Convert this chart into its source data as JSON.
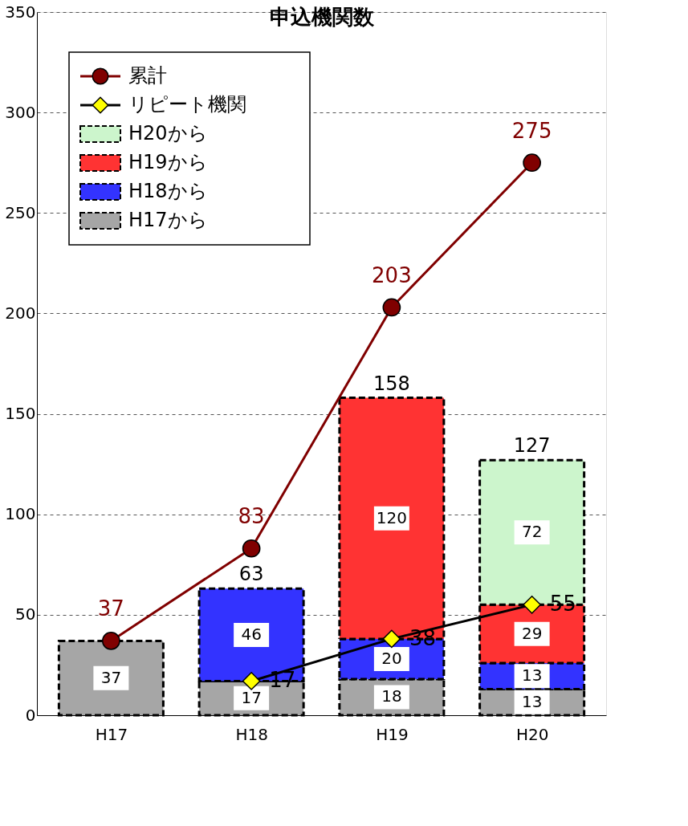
{
  "chart_data": {
    "type": "bar",
    "title": "申込機関数",
    "categories": [
      "H17",
      "H18",
      "H19",
      "H20"
    ],
    "stacked": true,
    "series": [
      {
        "name": "H17から",
        "color": "#a6a6a6",
        "values": [
          37,
          17,
          18,
          13
        ]
      },
      {
        "name": "H18から",
        "color": "#3333ff",
        "values": [
          null,
          46,
          20,
          13
        ]
      },
      {
        "name": "H19から",
        "color": "#ff3333",
        "values": [
          null,
          null,
          120,
          29
        ]
      },
      {
        "name": "H20から",
        "color": "#ccf5cc",
        "values": [
          null,
          null,
          null,
          72
        ]
      },
      {
        "name": "リピート機関",
        "type": "line",
        "color": "#000000",
        "marker": "diamond",
        "values": [
          null,
          17,
          38,
          55
        ]
      },
      {
        "name": "累計",
        "type": "line",
        "color": "#800000",
        "marker": "circle",
        "values": [
          37,
          83,
          203,
          275
        ]
      }
    ],
    "totals": [
      null,
      "63",
      "158",
      "127"
    ],
    "data_labels": true,
    "ylim": [
      0,
      350
    ],
    "yticks": [
      0,
      50,
      100,
      150,
      200,
      250,
      300,
      350
    ],
    "grid": "y",
    "legend": "top left"
  }
}
